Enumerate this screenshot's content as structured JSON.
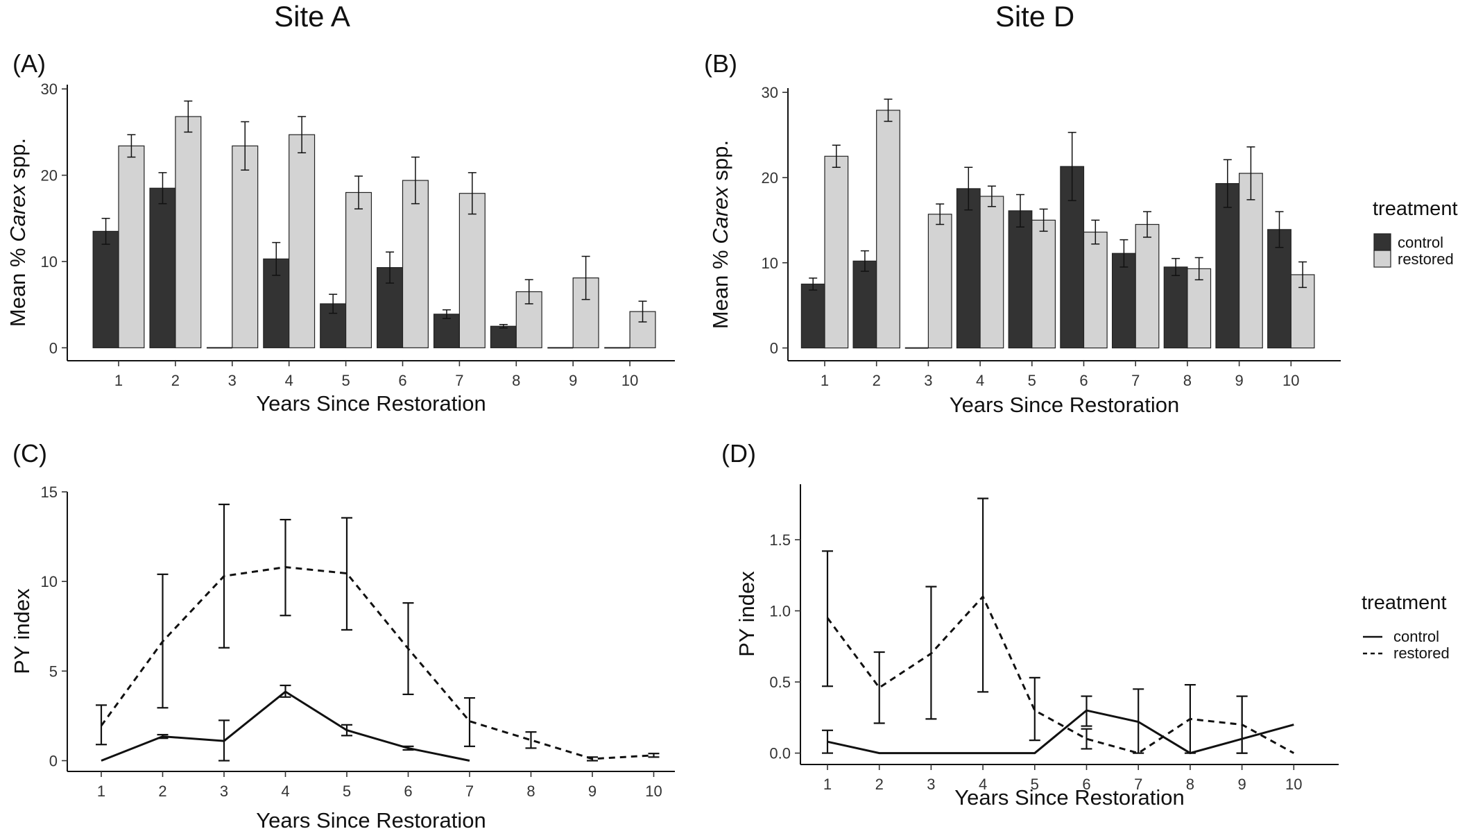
{
  "site_titles": [
    "Site A",
    "Site D"
  ],
  "legend": {
    "title": "treatment",
    "entries": [
      "control",
      "restored"
    ]
  },
  "colors": {
    "control_bar": "#333333",
    "restored_bar": "#d3d3d3",
    "line": "#111111"
  },
  "chart_data": [
    {
      "panel": "(A)",
      "type": "bar",
      "xlabel": "Years Since Restoration",
      "ylabel_prefix": "Mean % ",
      "ylabel_italic": "Carex",
      "ylabel_suffix": " spp.",
      "categories": [
        "1",
        "2",
        "3",
        "4",
        "5",
        "6",
        "7",
        "8",
        "9",
        "10"
      ],
      "yticks": [
        0,
        10,
        20,
        30
      ],
      "ylim": [
        -1.5,
        30.5
      ],
      "series": [
        {
          "name": "control",
          "values": [
            13.5,
            18.5,
            0,
            10.3,
            5.1,
            9.3,
            3.9,
            2.5,
            0,
            0
          ],
          "err": [
            1.5,
            1.8,
            0,
            1.9,
            1.1,
            1.8,
            0.5,
            0.2,
            0,
            0
          ]
        },
        {
          "name": "restored",
          "values": [
            23.4,
            26.8,
            23.4,
            24.7,
            18.0,
            19.4,
            17.9,
            6.5,
            8.1,
            4.2
          ],
          "err": [
            1.3,
            1.8,
            2.8,
            2.1,
            1.9,
            2.7,
            2.4,
            1.4,
            2.5,
            1.2
          ]
        }
      ],
      "legend": "none",
      "grid": false
    },
    {
      "panel": "(B)",
      "type": "bar",
      "xlabel": "Years Since Restoration",
      "ylabel_prefix": "Mean % ",
      "ylabel_italic": "Carex",
      "ylabel_suffix": " spp.",
      "categories": [
        "1",
        "2",
        "3",
        "4",
        "5",
        "6",
        "7",
        "8",
        "9",
        "10"
      ],
      "yticks": [
        0,
        10,
        20,
        30
      ],
      "ylim": [
        -1.5,
        30.5
      ],
      "series": [
        {
          "name": "control",
          "values": [
            7.5,
            10.2,
            0,
            18.7,
            16.1,
            21.3,
            11.1,
            9.5,
            19.3,
            13.9
          ],
          "err": [
            0.7,
            1.2,
            0,
            2.5,
            1.9,
            4.0,
            1.6,
            1.0,
            2.8,
            2.1
          ]
        },
        {
          "name": "restored",
          "values": [
            22.5,
            27.9,
            15.7,
            17.8,
            15.0,
            13.6,
            14.5,
            9.3,
            20.5,
            8.6
          ],
          "err": [
            1.3,
            1.3,
            1.2,
            1.2,
            1.3,
            1.4,
            1.5,
            1.3,
            3.1,
            1.5
          ]
        }
      ],
      "legend": "right",
      "grid": false
    },
    {
      "panel": "(C)",
      "type": "line",
      "xlabel": "Years Since Restoration",
      "ylabel": "PY index",
      "x": [
        1,
        2,
        3,
        4,
        5,
        6,
        7,
        8,
        9,
        10
      ],
      "yticks": [
        0,
        5,
        10,
        15
      ],
      "ytick_labels": [
        "0",
        "5",
        "10",
        "15"
      ],
      "ylim": [
        -0.6,
        15.0
      ],
      "series": [
        {
          "name": "control",
          "style": "solid",
          "x": [
            1,
            2,
            3,
            4,
            5,
            6,
            7
          ],
          "y": [
            0,
            1.35,
            1.1,
            3.85,
            1.7,
            0.7,
            0
          ],
          "lo": [
            0,
            1.25,
            0.0,
            3.55,
            1.4,
            0.6,
            0
          ],
          "hi": [
            0,
            1.45,
            2.25,
            4.2,
            2.0,
            0.8,
            0
          ]
        },
        {
          "name": "restored",
          "style": "dashed",
          "x": [
            1,
            2,
            3,
            4,
            5,
            6,
            7,
            8,
            9,
            10
          ],
          "y": [
            1.95,
            6.65,
            10.3,
            10.8,
            10.45,
            6.25,
            2.2,
            1.15,
            0.1,
            0.3
          ],
          "lo": [
            0.9,
            2.95,
            6.3,
            8.1,
            7.3,
            3.7,
            0.8,
            0.7,
            0.0,
            0.2
          ],
          "hi": [
            3.1,
            10.4,
            14.3,
            13.45,
            13.55,
            8.8,
            3.5,
            1.6,
            0.2,
            0.4
          ]
        }
      ],
      "legend": "none",
      "grid": false
    },
    {
      "panel": "(D)",
      "type": "line",
      "xlabel": "Years Since Restoration",
      "ylabel": "PY index",
      "x": [
        1,
        2,
        3,
        4,
        5,
        6,
        7,
        8,
        9,
        10
      ],
      "yticks": [
        0,
        0.5,
        1.0,
        1.5
      ],
      "ytick_labels": [
        "0.0",
        "0.5",
        "1.0",
        "1.5"
      ],
      "ylim": [
        -0.08,
        1.89
      ],
      "series": [
        {
          "name": "control",
          "style": "solid",
          "x": [
            1,
            2,
            3,
            4,
            5,
            6,
            7,
            8,
            9,
            10
          ],
          "y": [
            0.08,
            0,
            0,
            0,
            0,
            0.3,
            0.22,
            0,
            0.1,
            0.2
          ],
          "lo": [
            0,
            0,
            0,
            0,
            0,
            0.19,
            0,
            0,
            0,
            0.2
          ],
          "hi": [
            0.16,
            0,
            0,
            0,
            0,
            0.4,
            0.45,
            0,
            0.4,
            0.2
          ]
        },
        {
          "name": "restored",
          "style": "dashed",
          "x": [
            1,
            2,
            3,
            4,
            5,
            6,
            7,
            8,
            9,
            10
          ],
          "y": [
            0.95,
            0.46,
            0.7,
            1.1,
            0.3,
            0.1,
            0,
            0.24,
            0.2,
            0
          ],
          "lo": [
            0.47,
            0.21,
            0.24,
            0.43,
            0.09,
            0.03,
            0,
            0,
            0,
            0
          ],
          "hi": [
            1.42,
            0.71,
            1.17,
            1.79,
            0.53,
            0.17,
            0,
            0.48,
            0.4,
            0
          ]
        }
      ],
      "legend": "right",
      "grid": false
    }
  ]
}
